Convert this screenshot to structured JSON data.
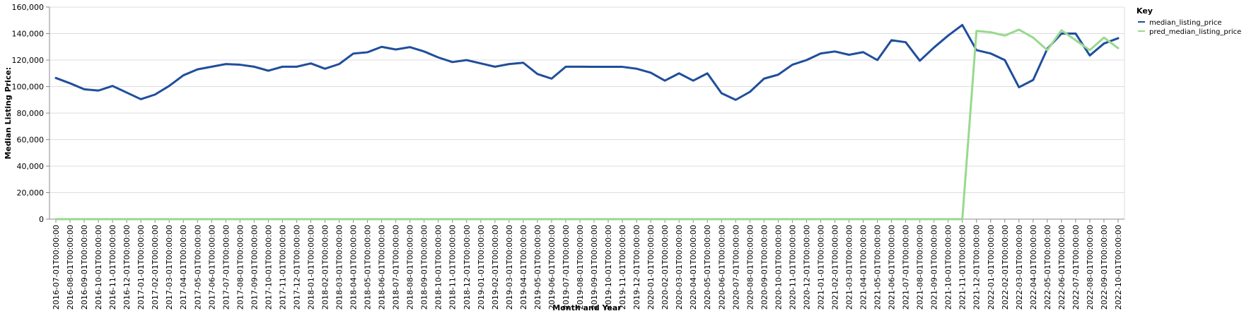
{
  "chart_data": {
    "type": "line",
    "xlabel": "Month and Year",
    "ylabel": "Median Listing Price:",
    "ylim": [
      0,
      160000
    ],
    "yticks": [
      0,
      20000,
      40000,
      60000,
      80000,
      100000,
      120000,
      140000,
      160000
    ],
    "ytick_labels": [
      "0",
      "20,000",
      "40,000",
      "60,000",
      "80,000",
      "100,000",
      "120,000",
      "140,000",
      "160,000"
    ],
    "grid": true,
    "legend_position": "top-right",
    "legend_title": "Key",
    "x": [
      "2016-07-01T00:00:00",
      "2016-08-01T00:00:00",
      "2016-09-01T00:00:00",
      "2016-10-01T00:00:00",
      "2016-11-01T00:00:00",
      "2016-12-01T00:00:00",
      "2017-01-01T00:00:00",
      "2017-02-01T00:00:00",
      "2017-03-01T00:00:00",
      "2017-04-01T00:00:00",
      "2017-05-01T00:00:00",
      "2017-06-01T00:00:00",
      "2017-07-01T00:00:00",
      "2017-08-01T00:00:00",
      "2017-09-01T00:00:00",
      "2017-10-01T00:00:00",
      "2017-11-01T00:00:00",
      "2017-12-01T00:00:00",
      "2018-01-01T00:00:00",
      "2018-02-01T00:00:00",
      "2018-03-01T00:00:00",
      "2018-04-01T00:00:00",
      "2018-05-01T00:00:00",
      "2018-06-01T00:00:00",
      "2018-07-01T00:00:00",
      "2018-08-01T00:00:00",
      "2018-09-01T00:00:00",
      "2018-10-01T00:00:00",
      "2018-11-01T00:00:00",
      "2018-12-01T00:00:00",
      "2019-01-01T00:00:00",
      "2019-02-01T00:00:00",
      "2019-03-01T00:00:00",
      "2019-04-01T00:00:00",
      "2019-05-01T00:00:00",
      "2019-06-01T00:00:00",
      "2019-07-01T00:00:00",
      "2019-08-01T00:00:00",
      "2019-09-01T00:00:00",
      "2019-10-01T00:00:00",
      "2019-11-01T00:00:00",
      "2019-12-01T00:00:00",
      "2020-01-01T00:00:00",
      "2020-02-01T00:00:00",
      "2020-03-01T00:00:00",
      "2020-04-01T00:00:00",
      "2020-05-01T00:00:00",
      "2020-06-01T00:00:00",
      "2020-07-01T00:00:00",
      "2020-08-01T00:00:00",
      "2020-09-01T00:00:00",
      "2020-10-01T00:00:00",
      "2020-11-01T00:00:00",
      "2020-12-01T00:00:00",
      "2021-01-01T00:00:00",
      "2021-02-01T00:00:00",
      "2021-03-01T00:00:00",
      "2021-04-01T00:00:00",
      "2021-05-01T00:00:00",
      "2021-06-01T00:00:00",
      "2021-07-01T00:00:00",
      "2021-08-01T00:00:00",
      "2021-09-01T00:00:00",
      "2021-10-01T00:00:00",
      "2021-11-01T00:00:00",
      "2021-12-01T00:00:00",
      "2022-01-01T00:00:00",
      "2022-02-01T00:00:00",
      "2022-03-01T00:00:00",
      "2022-04-01T00:00:00",
      "2022-05-01T00:00:00",
      "2022-06-01T00:00:00",
      "2022-07-01T00:00:00",
      "2022-08-01T00:00:00",
      "2022-09-01T00:00:00",
      "2022-10-01T00:00:00"
    ],
    "series": [
      {
        "name": "median_listing_price",
        "color": "#1f4e9c",
        "values": [
          106500,
          102500,
          98000,
          97000,
          100500,
          95500,
          90500,
          94000,
          100500,
          108500,
          113000,
          115000,
          117000,
          116500,
          115000,
          112000,
          115000,
          115000,
          117500,
          113500,
          117000,
          124900,
          125900,
          130000,
          128000,
          129800,
          126500,
          122000,
          118500,
          120000,
          117500,
          115000,
          117000,
          118000,
          109500,
          106000,
          115000,
          115000,
          114900,
          114900,
          114900,
          113500,
          110500,
          104500,
          110000,
          104500,
          110000,
          95000,
          90000,
          96000,
          106000,
          109000,
          116500,
          120000,
          125000,
          126500,
          124000,
          126000,
          120000,
          135000,
          133500,
          119500,
          129500,
          138500,
          146500,
          127500,
          125000,
          120000,
          99500,
          105000,
          128500,
          140000,
          140000,
          123500,
          132500,
          136500
        ]
      },
      {
        "name": "pred_median_listing_price",
        "color": "#98d98e",
        "values": [
          0,
          0,
          0,
          0,
          0,
          0,
          0,
          0,
          0,
          0,
          0,
          0,
          0,
          0,
          0,
          0,
          0,
          0,
          0,
          0,
          0,
          0,
          0,
          0,
          0,
          0,
          0,
          0,
          0,
          0,
          0,
          0,
          0,
          0,
          0,
          0,
          0,
          0,
          0,
          0,
          0,
          0,
          0,
          0,
          0,
          0,
          0,
          0,
          0,
          0,
          0,
          0,
          0,
          0,
          0,
          0,
          0,
          0,
          0,
          0,
          0,
          0,
          0,
          0,
          0,
          142000,
          141000,
          138500,
          143000,
          137000,
          127500,
          142500,
          135000,
          127500,
          137000,
          129000
        ]
      }
    ]
  },
  "colors": {
    "grid": "#dddddd",
    "axis": "#888888",
    "background": "#ffffff"
  }
}
